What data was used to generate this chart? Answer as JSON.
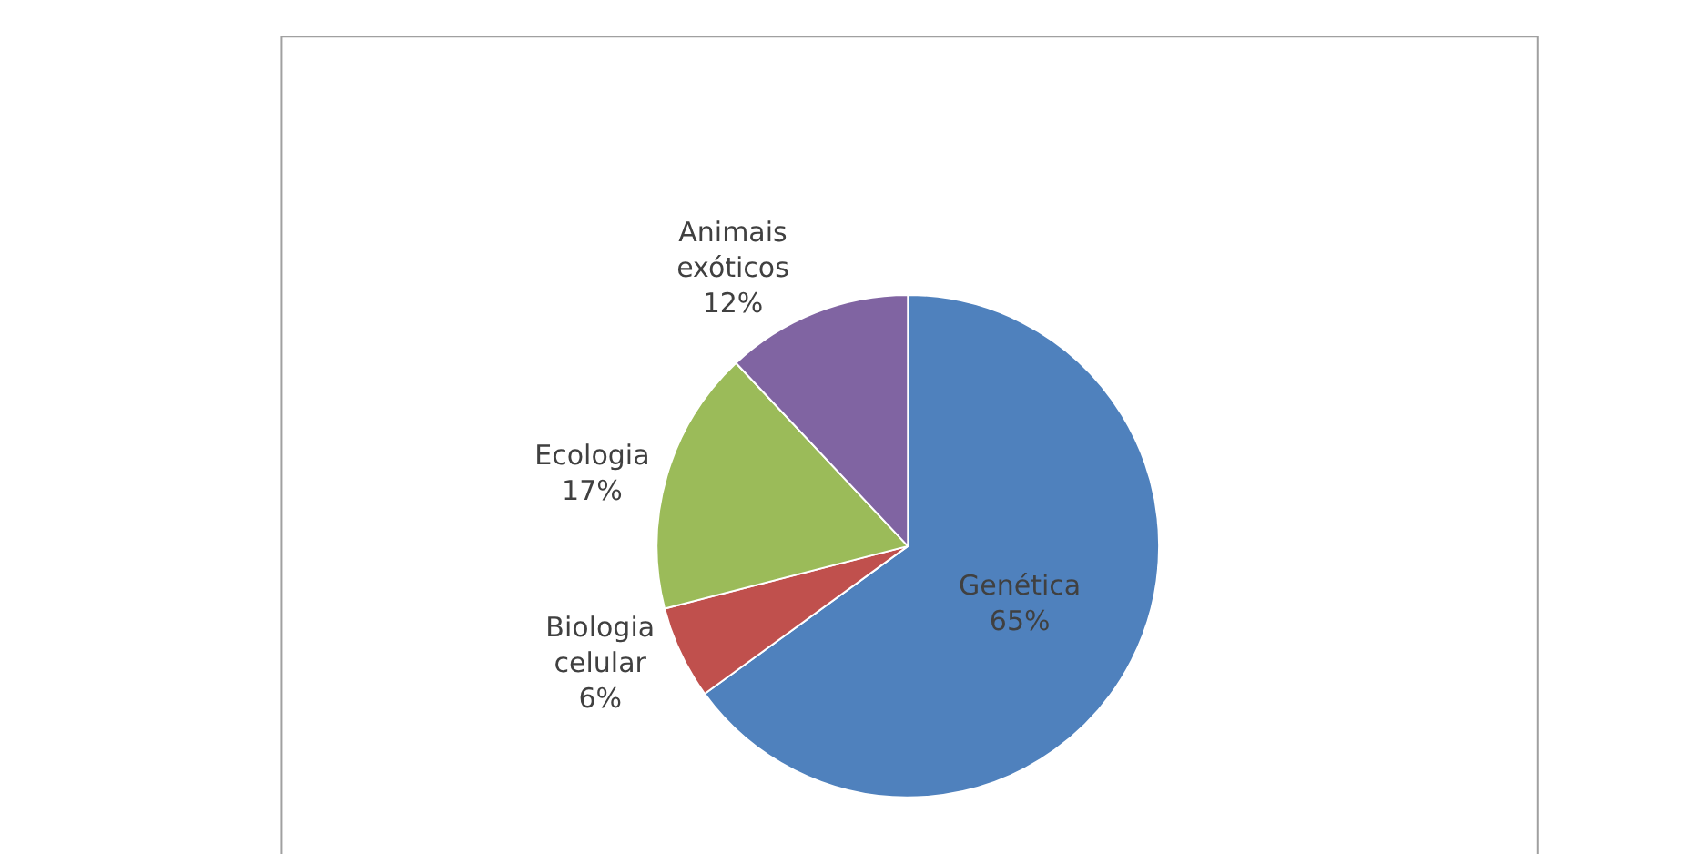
{
  "chart_data": {
    "type": "pie",
    "categories": [
      "Genética",
      "Biologia celular",
      "Ecologia",
      "Animais exóticos"
    ],
    "values": [
      65,
      6,
      17,
      12
    ],
    "colors": [
      "#4f81bd",
      "#c0504d",
      "#9bbb59",
      "#8064a2"
    ],
    "value_labels": [
      "65%",
      "6%",
      "17%",
      "12%"
    ],
    "legend": false
  }
}
